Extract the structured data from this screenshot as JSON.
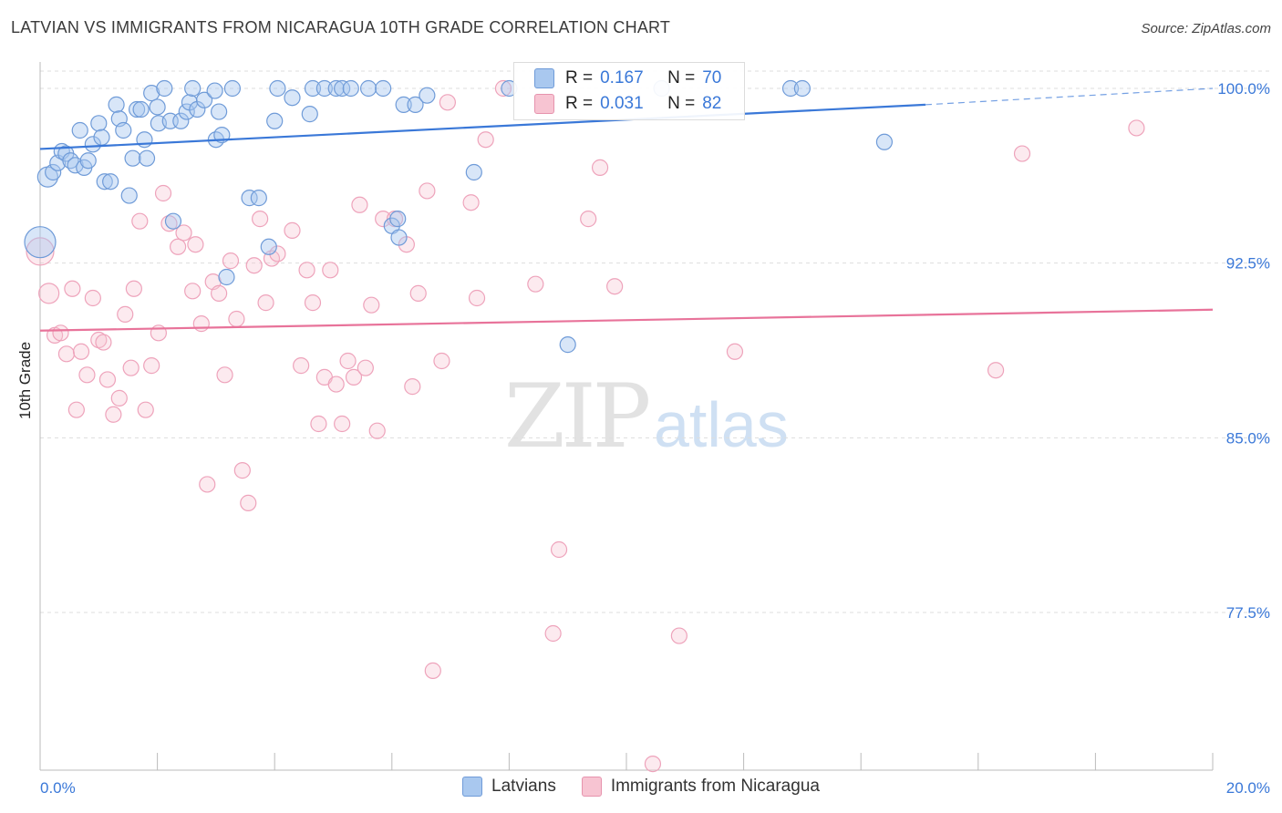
{
  "title": "LATVIAN VS IMMIGRANTS FROM NICARAGUA 10TH GRADE CORRELATION CHART",
  "source": "Source: ZipAtlas.com",
  "watermark": {
    "zip": "ZIP",
    "atlas": "atlas"
  },
  "colors": {
    "blue": "#3a78d8",
    "blue_fill": "#a9c8ef",
    "pink": "#e8739a",
    "pink_fill": "#f7c4d2",
    "axis_text": "#3a78d8"
  },
  "stats": {
    "r_label": "R =",
    "n_label": "N =",
    "blue": {
      "r": "0.167",
      "n": "70"
    },
    "pink": {
      "r": "0.031",
      "n": "82"
    }
  },
  "legend": {
    "blue": "Latvians",
    "pink": "Immigrants from Nicaragua"
  },
  "chart_data": {
    "type": "scatter",
    "title": "LATVIAN VS IMMIGRANTS FROM NICARAGUA 10TH GRADE CORRELATION CHART",
    "xlabel": "",
    "ylabel": "10th Grade",
    "xlim": [
      0,
      20
    ],
    "ylim": [
      70.5,
      101.5
    ],
    "x_tick_labels": [
      "0.0%",
      "20.0%"
    ],
    "y_ticks": [
      77.5,
      85.0,
      92.5,
      100.0
    ],
    "y_tick_labels": [
      "77.5%",
      "85.0%",
      "92.5%",
      "100.0%"
    ],
    "grid": true,
    "legend_position": "bottom",
    "series": [
      {
        "name": "Latvians",
        "color": "#3a78d8",
        "trend": {
          "x": [
            0,
            15.1
          ],
          "y": [
            97.4,
            99.3
          ],
          "dashed_to": [
            20,
            100.0
          ]
        },
        "points": [
          [
            0.0,
            93.4
          ],
          [
            0.13,
            96.2
          ],
          [
            0.22,
            96.4
          ],
          [
            0.3,
            96.8
          ],
          [
            0.37,
            97.3
          ],
          [
            0.44,
            97.2
          ],
          [
            0.52,
            96.9
          ],
          [
            0.6,
            96.7
          ],
          [
            0.68,
            98.2
          ],
          [
            0.75,
            96.6
          ],
          [
            0.82,
            96.9
          ],
          [
            0.9,
            97.6
          ],
          [
            1.0,
            98.5
          ],
          [
            1.05,
            97.9
          ],
          [
            1.1,
            96.0
          ],
          [
            1.2,
            96.0
          ],
          [
            1.3,
            99.3
          ],
          [
            1.35,
            98.7
          ],
          [
            1.42,
            98.2
          ],
          [
            1.52,
            95.4
          ],
          [
            1.58,
            97.0
          ],
          [
            1.65,
            99.1
          ],
          [
            1.72,
            99.1
          ],
          [
            1.78,
            97.8
          ],
          [
            1.82,
            97.0
          ],
          [
            1.9,
            99.8
          ],
          [
            2.0,
            99.2
          ],
          [
            2.02,
            98.5
          ],
          [
            2.12,
            100.0
          ],
          [
            2.22,
            98.6
          ],
          [
            2.27,
            94.3
          ],
          [
            2.4,
            98.6
          ],
          [
            2.5,
            99.0
          ],
          [
            2.55,
            99.4
          ],
          [
            2.6,
            100.0
          ],
          [
            2.68,
            99.1
          ],
          [
            2.8,
            99.5
          ],
          [
            2.98,
            99.9
          ],
          [
            3.0,
            97.8
          ],
          [
            3.05,
            99.0
          ],
          [
            3.1,
            98.0
          ],
          [
            3.18,
            91.9
          ],
          [
            3.28,
            100.0
          ],
          [
            3.57,
            95.3
          ],
          [
            3.73,
            95.3
          ],
          [
            3.9,
            93.2
          ],
          [
            4.0,
            98.6
          ],
          [
            4.05,
            100.0
          ],
          [
            4.3,
            99.6
          ],
          [
            4.6,
            98.9
          ],
          [
            4.65,
            100.0
          ],
          [
            4.85,
            100.0
          ],
          [
            5.05,
            100.0
          ],
          [
            5.15,
            100.0
          ],
          [
            5.3,
            100.0
          ],
          [
            5.6,
            100.0
          ],
          [
            5.85,
            100.0
          ],
          [
            6.0,
            94.1
          ],
          [
            6.1,
            94.4
          ],
          [
            6.12,
            93.6
          ],
          [
            6.2,
            99.3
          ],
          [
            6.4,
            99.3
          ],
          [
            6.6,
            99.7
          ],
          [
            7.4,
            96.4
          ],
          [
            8.0,
            100.0
          ],
          [
            9.0,
            89.0
          ],
          [
            10.6,
            100.0
          ],
          [
            12.8,
            100.0
          ],
          [
            13.0,
            100.0
          ],
          [
            14.4,
            97.7
          ]
        ]
      },
      {
        "name": "Immigrants from Nicaragua",
        "color": "#e8739a",
        "trend": {
          "x": [
            0,
            20
          ],
          "y": [
            89.6,
            90.5
          ]
        },
        "points": [
          [
            0.0,
            93.0
          ],
          [
            0.15,
            91.2
          ],
          [
            0.25,
            89.4
          ],
          [
            0.35,
            89.5
          ],
          [
            0.45,
            88.6
          ],
          [
            0.55,
            91.4
          ],
          [
            0.62,
            86.2
          ],
          [
            0.7,
            88.7
          ],
          [
            0.8,
            87.7
          ],
          [
            0.9,
            91.0
          ],
          [
            1.0,
            89.2
          ],
          [
            1.08,
            89.1
          ],
          [
            1.15,
            87.5
          ],
          [
            1.25,
            86.0
          ],
          [
            1.35,
            86.7
          ],
          [
            1.45,
            90.3
          ],
          [
            1.55,
            88.0
          ],
          [
            1.6,
            91.4
          ],
          [
            1.7,
            94.3
          ],
          [
            1.8,
            86.2
          ],
          [
            1.9,
            88.1
          ],
          [
            2.02,
            89.5
          ],
          [
            2.1,
            95.5
          ],
          [
            2.2,
            94.2
          ],
          [
            2.35,
            93.2
          ],
          [
            2.45,
            93.8
          ],
          [
            2.6,
            91.3
          ],
          [
            2.65,
            93.3
          ],
          [
            2.75,
            89.9
          ],
          [
            2.85,
            83.0
          ],
          [
            2.95,
            91.7
          ],
          [
            3.05,
            91.2
          ],
          [
            3.15,
            87.7
          ],
          [
            3.25,
            92.6
          ],
          [
            3.35,
            90.1
          ],
          [
            3.45,
            83.6
          ],
          [
            3.55,
            82.2
          ],
          [
            3.65,
            92.4
          ],
          [
            3.75,
            94.4
          ],
          [
            3.85,
            90.8
          ],
          [
            3.95,
            92.7
          ],
          [
            4.05,
            92.9
          ],
          [
            4.3,
            93.9
          ],
          [
            4.45,
            88.1
          ],
          [
            4.55,
            92.2
          ],
          [
            4.65,
            90.8
          ],
          [
            4.75,
            85.6
          ],
          [
            4.85,
            87.6
          ],
          [
            4.95,
            92.2
          ],
          [
            5.05,
            87.3
          ],
          [
            5.15,
            85.6
          ],
          [
            5.25,
            88.3
          ],
          [
            5.35,
            87.6
          ],
          [
            5.45,
            95.0
          ],
          [
            5.55,
            88.0
          ],
          [
            5.65,
            90.7
          ],
          [
            5.75,
            85.3
          ],
          [
            5.85,
            94.4
          ],
          [
            6.05,
            94.4
          ],
          [
            6.25,
            93.3
          ],
          [
            6.35,
            87.2
          ],
          [
            6.45,
            91.2
          ],
          [
            6.6,
            95.6
          ],
          [
            6.7,
            75.0
          ],
          [
            6.85,
            88.3
          ],
          [
            6.95,
            99.4
          ],
          [
            7.35,
            95.1
          ],
          [
            7.45,
            91.0
          ],
          [
            7.6,
            97.8
          ],
          [
            7.9,
            100.0
          ],
          [
            8.45,
            91.6
          ],
          [
            8.75,
            76.6
          ],
          [
            8.85,
            80.2
          ],
          [
            9.35,
            94.4
          ],
          [
            9.55,
            96.6
          ],
          [
            9.8,
            91.5
          ],
          [
            10.45,
            71.0
          ],
          [
            10.9,
            76.5
          ],
          [
            11.85,
            88.7
          ],
          [
            16.3,
            87.9
          ],
          [
            16.75,
            97.2
          ],
          [
            18.7,
            98.3
          ]
        ]
      }
    ]
  }
}
